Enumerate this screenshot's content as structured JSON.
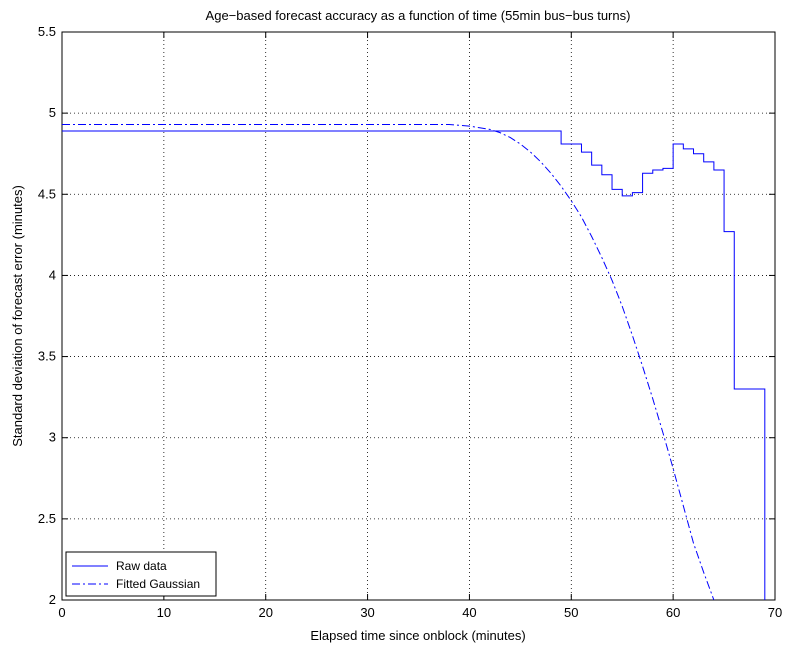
{
  "chart_data": {
    "type": "line",
    "title": "Age−based forecast accuracy as a function of time (55min bus−bus turns)",
    "xlabel": "Elapsed time since onblock (minutes)",
    "ylabel": "Standard deviation of forecast error (minutes)",
    "xlim": [
      0,
      70
    ],
    "ylim": [
      2,
      5.5
    ],
    "xticks": [
      0,
      10,
      20,
      30,
      40,
      50,
      60,
      70
    ],
    "yticks": [
      2,
      2.5,
      3,
      3.5,
      4,
      4.5,
      5,
      5.5
    ],
    "xtick_labels": [
      "0",
      "10",
      "20",
      "30",
      "40",
      "50",
      "60",
      "70"
    ],
    "ytick_labels": [
      "2",
      "2.5",
      "3",
      "3.5",
      "4",
      "4.5",
      "5",
      "5.5"
    ],
    "grid": true,
    "legend_position": "bottom-left",
    "series": [
      {
        "name": "Raw data",
        "style": "solid",
        "color": "#0000ff",
        "step": true,
        "x": [
          0,
          49,
          50,
          51,
          52,
          53,
          54,
          55,
          56,
          57,
          58,
          59,
          60,
          61,
          62,
          63,
          64,
          65,
          66,
          67,
          68,
          69,
          69
        ],
        "y": [
          4.89,
          4.81,
          4.81,
          4.76,
          4.68,
          4.62,
          4.53,
          4.49,
          4.51,
          4.63,
          4.65,
          4.66,
          4.81,
          4.78,
          4.75,
          4.7,
          4.65,
          4.27,
          3.3,
          3.3,
          3.3,
          3.3,
          2.0
        ]
      },
      {
        "name": "Fitted Gaussian",
        "style": "dashdot",
        "color": "#0000ff",
        "x": [
          0,
          36,
          38,
          40,
          41,
          42,
          43,
          44,
          45,
          46,
          47,
          48,
          49,
          50,
          51,
          52,
          53,
          54,
          55,
          56,
          57,
          58,
          59,
          60,
          61,
          62,
          63,
          64
        ],
        "y": [
          4.93,
          4.93,
          4.93,
          4.92,
          4.91,
          4.9,
          4.88,
          4.85,
          4.81,
          4.76,
          4.7,
          4.63,
          4.55,
          4.46,
          4.36,
          4.24,
          4.11,
          3.97,
          3.81,
          3.63,
          3.44,
          3.24,
          3.03,
          2.81,
          2.58,
          2.35,
          2.17,
          2.0
        ]
      }
    ]
  }
}
